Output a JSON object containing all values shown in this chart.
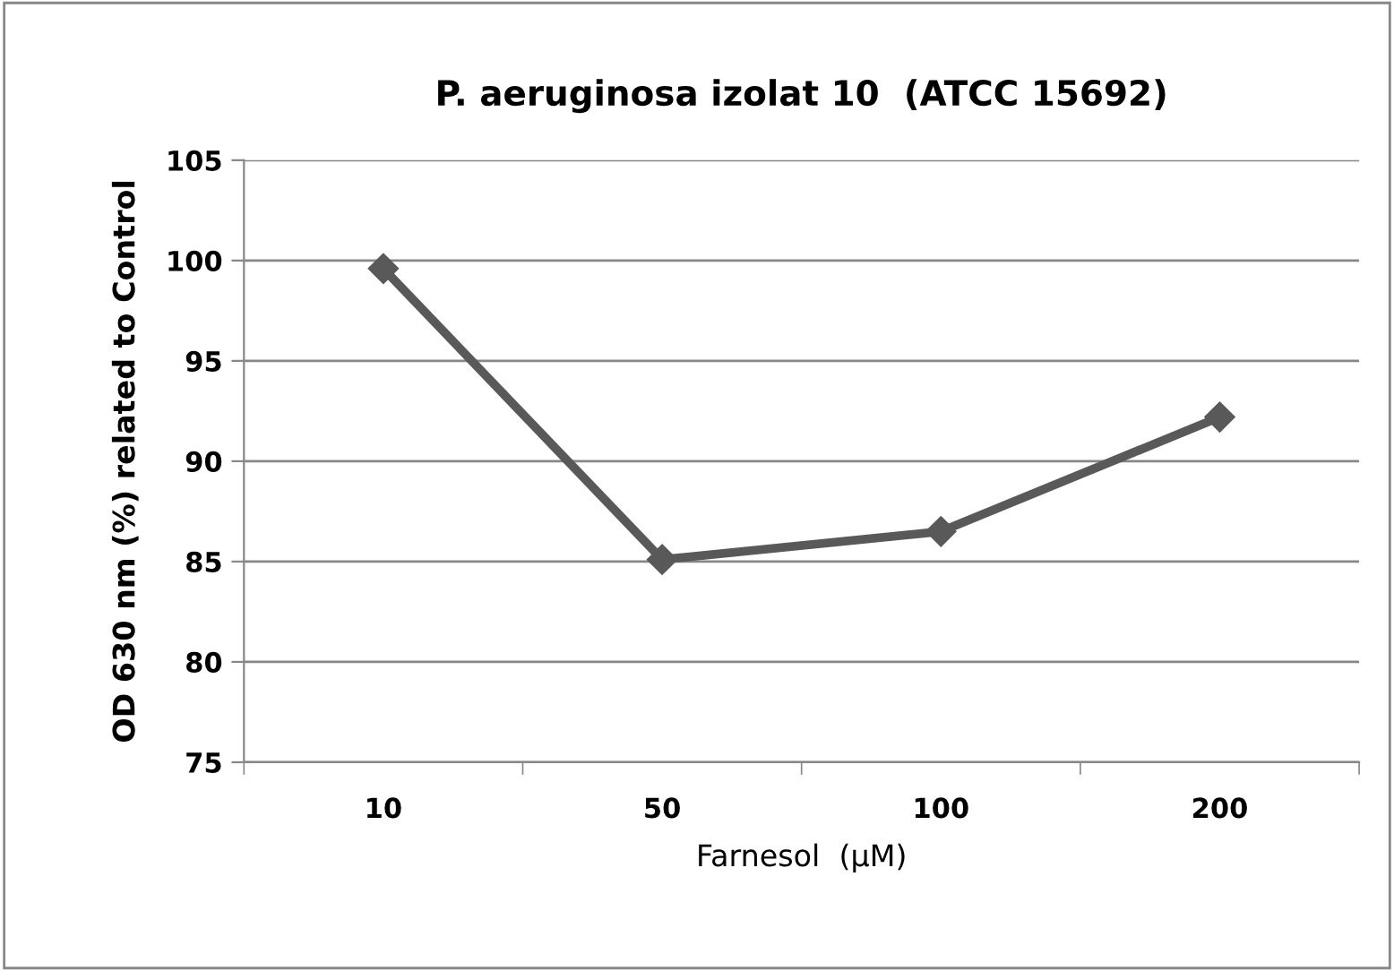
{
  "chart_data": {
    "type": "line",
    "title": "P. aeruginosa izolat 10  (ATCC 15692)",
    "xlabel": "Farnesol  (µM)",
    "ylabel": "OD 630 nm (%) related to Control",
    "categories": [
      "10",
      "50",
      "100",
      "200"
    ],
    "series": [
      {
        "color": "#595959",
        "values": [
          99.6,
          85.1,
          86.5,
          92.2
        ]
      }
    ],
    "ylim": [
      75,
      105
    ],
    "yticks": [
      75,
      80,
      85,
      90,
      95,
      100,
      105
    ],
    "grid": "y",
    "marker": "diamond",
    "line_style": "solid",
    "legend": false
  }
}
